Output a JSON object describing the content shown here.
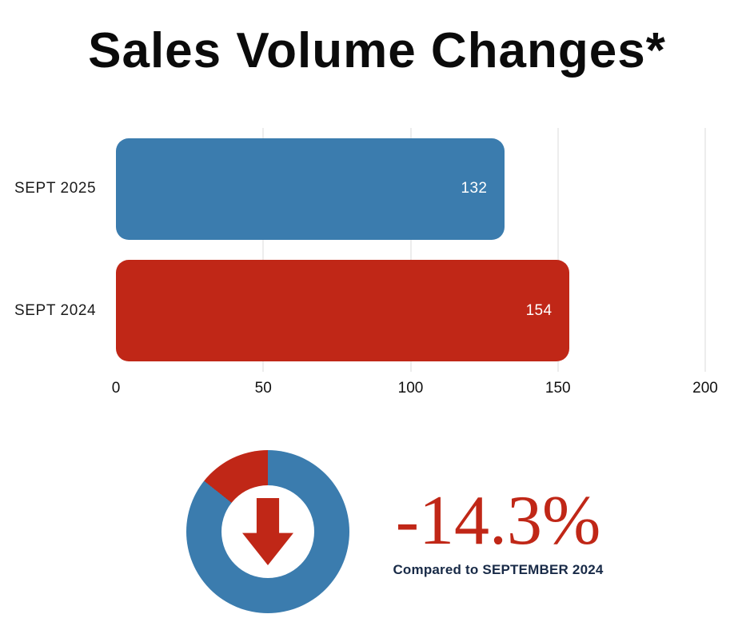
{
  "title": "Sales Volume Changes*",
  "chart_data": [
    {
      "type": "bar",
      "orientation": "horizontal",
      "title": "Sales Volume Changes*",
      "categories": [
        "SEPT 2025",
        "SEPT 2024"
      ],
      "values": [
        132,
        154
      ],
      "value_labels": [
        "132",
        "154"
      ],
      "bar_colors": [
        "#3b7cae",
        "#c02717"
      ],
      "value_label_color": "#ffffff",
      "xlim": [
        0,
        200
      ],
      "xticks": [
        0,
        50,
        100,
        150,
        200
      ],
      "grid": true,
      "gridline_color": "#ededed",
      "legend": false
    },
    {
      "type": "pie",
      "donut": true,
      "slices": [
        {
          "name": "decrease",
          "fraction": 0.143,
          "color": "#c02717"
        },
        {
          "name": "remainder",
          "fraction": 0.857,
          "color": "#3b7cae"
        }
      ],
      "center_icon": "arrow-down-icon",
      "icon_color": "#c02717"
    }
  ],
  "summary": {
    "percent_change": "-14.3%",
    "comparison": "Compared to SEPTEMBER 2024",
    "accent_color": "#c02717",
    "text_color": "#182a47"
  }
}
